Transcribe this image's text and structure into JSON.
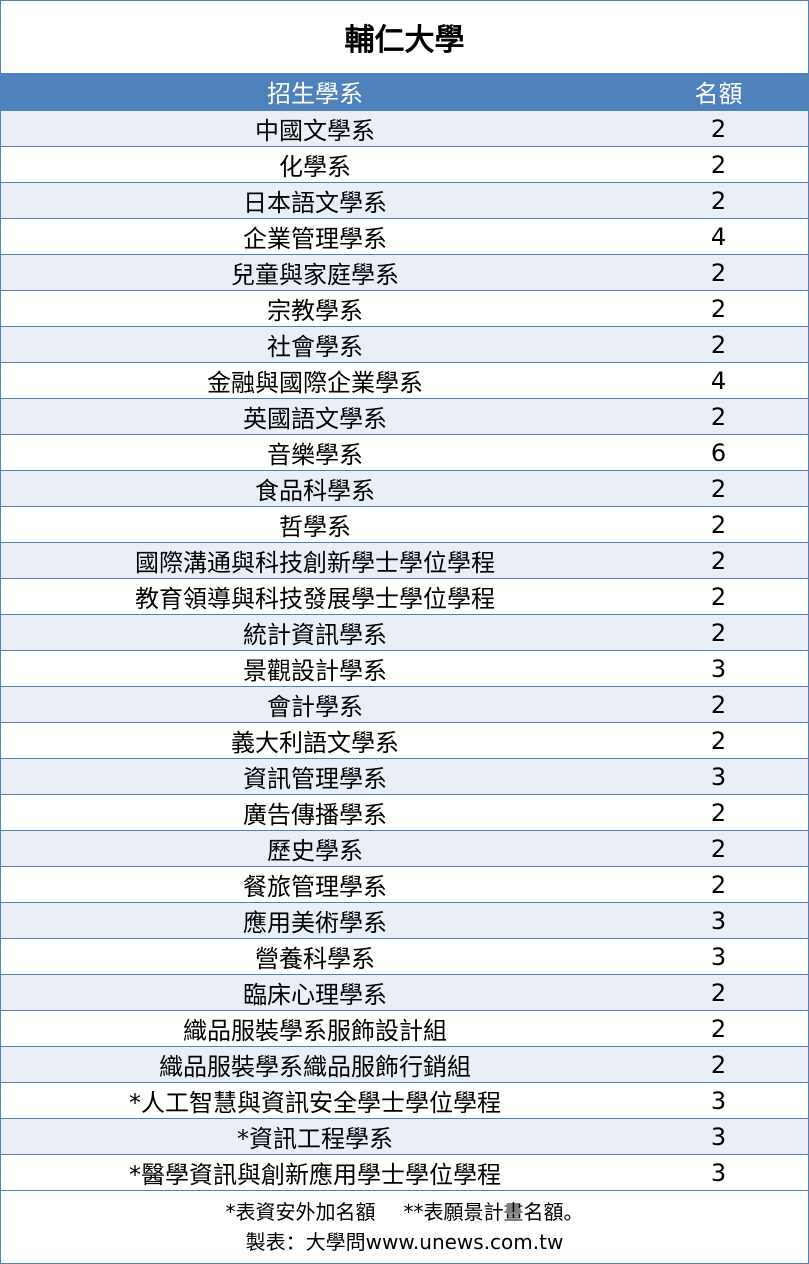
{
  "title": "輔仁大學",
  "headers": {
    "department": "招生學系",
    "quota": "名額"
  },
  "rows": [
    {
      "department": "中國文學系",
      "quota": "2"
    },
    {
      "department": "化學系",
      "quota": "2"
    },
    {
      "department": "日本語文學系",
      "quota": "2"
    },
    {
      "department": "企業管理學系",
      "quota": "4"
    },
    {
      "department": "兒童與家庭學系",
      "quota": "2"
    },
    {
      "department": "宗教學系",
      "quota": "2"
    },
    {
      "department": "社會學系",
      "quota": "2"
    },
    {
      "department": "金融與國際企業學系",
      "quota": "4"
    },
    {
      "department": "英國語文學系",
      "quota": "2"
    },
    {
      "department": "音樂學系",
      "quota": "6"
    },
    {
      "department": "食品科學系",
      "quota": "2"
    },
    {
      "department": "哲學系",
      "quota": "2"
    },
    {
      "department": "國際溝通與科技創新學士學位學程",
      "quota": "2"
    },
    {
      "department": "教育領導與科技發展學士學位學程",
      "quota": "2"
    },
    {
      "department": "統計資訊學系",
      "quota": "2"
    },
    {
      "department": "景觀設計學系",
      "quota": "3"
    },
    {
      "department": "會計學系",
      "quota": "2"
    },
    {
      "department": "義大利語文學系",
      "quota": "2"
    },
    {
      "department": "資訊管理學系",
      "quota": "3"
    },
    {
      "department": "廣告傳播學系",
      "quota": "2"
    },
    {
      "department": "歷史學系",
      "quota": "2"
    },
    {
      "department": "餐旅管理學系",
      "quota": "2"
    },
    {
      "department": "應用美術學系",
      "quota": "3"
    },
    {
      "department": "營養科學系",
      "quota": "3"
    },
    {
      "department": "臨床心理學系",
      "quota": "2"
    },
    {
      "department": "織品服裝學系服飾設計組",
      "quota": "2"
    },
    {
      "department": "織品服裝學系織品服飾行銷組",
      "quota": "2"
    },
    {
      "department": "*人工智慧與資訊安全學士學位學程",
      "quota": "3"
    },
    {
      "department": "*資訊工程學系",
      "quota": "3"
    },
    {
      "department": "*醫學資訊與創新應用學士學位學程",
      "quota": "3"
    }
  ],
  "footer": {
    "note1": "*表資安外加名額",
    "note2": "**表願景計畫名額。",
    "credit": "製表：大學問www.unews.com.tw"
  },
  "colors": {
    "header": "#4f81bd",
    "alt_row": "#e9eef7",
    "border": "#4f81bd"
  }
}
